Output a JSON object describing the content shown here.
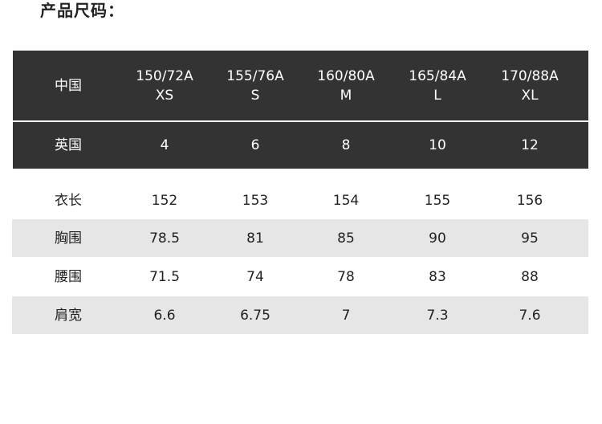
{
  "title": "产品尺码：",
  "table": {
    "size_row": {
      "label": "中国",
      "cells": [
        {
          "code": "150/72A",
          "size": "XS"
        },
        {
          "code": "155/76A",
          "size": "S"
        },
        {
          "code": "160/80A",
          "size": "M"
        },
        {
          "code": "165/84A",
          "size": "L"
        },
        {
          "code": "170/88A",
          "size": "XL"
        }
      ]
    },
    "uk_row": {
      "label": "英国",
      "cells": [
        "4",
        "6",
        "8",
        "10",
        "12"
      ]
    },
    "rows": [
      {
        "label": "衣长",
        "cells": [
          "152",
          "153",
          "154",
          "155",
          "156"
        ]
      },
      {
        "label": "胸围",
        "cells": [
          "78.5",
          "81",
          "85",
          "90",
          "95"
        ]
      },
      {
        "label": "腰围",
        "cells": [
          "71.5",
          "74",
          "78",
          "83",
          "88"
        ]
      },
      {
        "label": "肩宽",
        "cells": [
          "6.6",
          "6.75",
          "7",
          "7.3",
          "7.6"
        ]
      }
    ]
  }
}
